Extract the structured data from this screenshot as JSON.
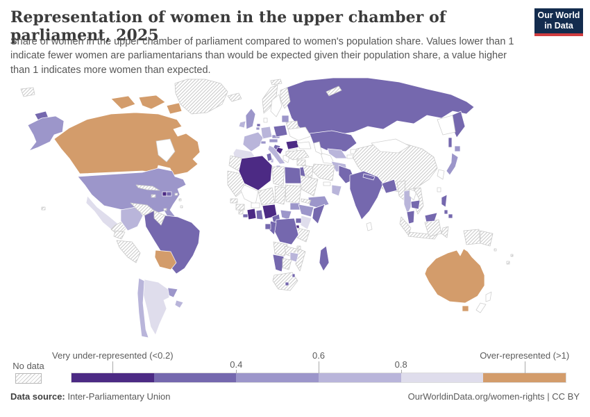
{
  "header": {
    "title": "Representation of women in the upper chamber of parliament, 2025",
    "subtitle": "Share of women in the upper chamber of parliament compared to women's population share. Values lower than 1 indicate fewer women are parliamentarians than would be expected given their population share, a value higher than 1 indicates more women than expected.",
    "logo": {
      "line1": "Our World",
      "line2": "in Data",
      "bg_color": "#132c4e",
      "accent_color": "#d13d40"
    }
  },
  "footer": {
    "datasource_label": "Data source:",
    "datasource_value": "Inter-Parliamentary Union",
    "link_text": "OurWorldinData.org/women-rights | CC BY"
  },
  "chart_data": {
    "type": "choropleth",
    "title": "Representation of women in the upper chamber of parliament, 2025",
    "year": "2025",
    "legend": {
      "no_data_label": "No data",
      "bins": [
        {
          "range": "<0.2",
          "color": "#4c2a84"
        },
        {
          "range": "0.2-0.4",
          "color": "#7568ae"
        },
        {
          "range": "0.4-0.6",
          "color": "#9c96ca"
        },
        {
          "range": "0.6-0.8",
          "color": "#b9b5da"
        },
        {
          "range": "0.8-1",
          "color": "#dfddec"
        },
        {
          "range": ">1",
          "color": "#d39c6b"
        }
      ],
      "labels": [
        {
          "text": "Very under-represented (<0.2)",
          "position": 0.0833,
          "row": "upper"
        },
        {
          "text": "0.4",
          "position": 0.3333,
          "row": "lower"
        },
        {
          "text": "0.6",
          "position": 0.5,
          "row": "upper"
        },
        {
          "text": "0.8",
          "position": 0.6667,
          "row": "lower"
        },
        {
          "text": "Over-represented (>1)",
          "position": 0.9167,
          "row": "upper"
        }
      ]
    },
    "countries": {
      "canada": ">1",
      "greenland": "no-data",
      "united-states": "0.4-0.6",
      "wrangel-island": "no-data",
      "mexico": "0.8-1",
      "belize": ">1",
      "central-america": "no-data",
      "cuba": "no-data",
      "jamaica": "no-data",
      "haiti": "<0.2",
      "dominican-republic": "0.2-0.4",
      "puerto-rico": "no-data",
      "antilles": "no-data",
      "trinidad-and-tobago": "no-data",
      "hawaii": "no-data",
      "colombia": "0.6-0.8",
      "venezuela": "no-data",
      "guyana": "no-data",
      "ecuador": "no-data",
      "peru": "no-data",
      "brazil": "0.2-0.4",
      "bolivia": ">1",
      "paraguay": "0.4-0.6",
      "uruguay": "0.6-0.8",
      "argentina": "0.8-1",
      "chile": "0.6-0.8",
      "iceland": "no-data",
      "svalbard": "no-data",
      "united-kingdom": "0.4-0.6",
      "ireland": "0.6-0.8",
      "norway": "no-data",
      "sweden": "outline",
      "finland": "no-data",
      "denmark": "outline",
      "netherlands": "0.2-0.4",
      "belgium": "0.4-0.6",
      "france": "0.6-0.8",
      "spain": "0.8-1",
      "germany": "0.6-0.8",
      "switzerland": "0.4-0.6",
      "austria": "0.4-0.6",
      "czechia": "0.4-0.6",
      "poland": "0.2-0.4",
      "italy": "0.6-0.8",
      "croatia": "0.2-0.4",
      "bosnia-and-herzegovina": "<0.2",
      "romania": "<0.2",
      "greece": "outline",
      "ukraine": "outline",
      "belarus": "no-data",
      "baltics": "0.4-0.6",
      "bulgaria": "outline",
      "russia": "0.2-0.4",
      "novaya-zemlya": "no-data",
      "kazakhstan": "0.2-0.4",
      "uzbekistan": "0.6-0.8",
      "turkmenistan": "outline",
      "kyrgyzstan": "outline",
      "tajikistan": "outline",
      "china": "no-data",
      "mongolia": "outline",
      "japan": "0.4-0.6",
      "south-korea": "outline",
      "taiwan": "outline",
      "india": "0.2-0.4",
      "pakistan": "0.2-0.4",
      "afghanistan": "0.6-0.8",
      "nepal": "0.2-0.4",
      "bangladesh": "0.2-0.4",
      "sri-lanka": "outline",
      "myanmar": "no-data",
      "thailand": "0.6-0.8",
      "laos": "outline",
      "cambodia": "0.2-0.4",
      "vietnam": "no-data",
      "malaysia": "0.2-0.4",
      "indonesia": "no-data",
      "philippines": "0.2-0.4",
      "papua-new-guinea": "no-data",
      "fiji": "no-data",
      "pacific-islands": "no-data",
      "new-zealand": "outline",
      "australia": ">1",
      "turkey": "no-data",
      "syria": "no-data",
      "jordan": "0.2-0.4",
      "iraq": "no-data",
      "iran": "no-data",
      "saudi-arabia": "no-data",
      "yemen": "0.4-0.6",
      "oman": "0.6-0.8",
      "united-arab-emirates": "outline",
      "morocco": "no-data",
      "western-sahara": "no-data",
      "algeria": "<0.2",
      "tunisia": "0.2-0.4",
      "libya": "no-data",
      "egypt": "0.2-0.4",
      "mali": "outline",
      "niger": "no-data",
      "chad": "no-data",
      "sudan": "no-data",
      "eritrea": "no-data",
      "senegal": "no-data",
      "guinea": "no-data",
      "sierra-leone": "no-data",
      "liberia": "0.2-0.4",
      "ivory-coast": "<0.2",
      "ghana": "0.2-0.4",
      "burkina-faso": "outline",
      "nigeria": "<0.2",
      "cameroon": "0.2-0.4",
      "central-african-republic": "0.4-0.6",
      "south-sudan": "0.4-0.6",
      "ethiopia": "0.4-0.6",
      "somalia": "0.2-0.4",
      "kenya": "0.8-1",
      "uganda": "0.2-0.4",
      "rwanda": "<0.2",
      "tanzania": "no-data",
      "democratic-republic-of-congo": "0.2-0.4",
      "congo": "0.2-0.4",
      "gabon": "0.2-0.4",
      "angola": "no-data",
      "zambia": "no-data",
      "malawi": "no-data",
      "mozambique": "no-data",
      "zimbabwe": "0.6-0.8",
      "namibia": "0.2-0.4",
      "botswana": "no-data",
      "south-africa": "no-data",
      "lesotho": "0.2-0.4",
      "eswatini": "0.2-0.4",
      "madagascar": "0.2-0.4"
    }
  }
}
